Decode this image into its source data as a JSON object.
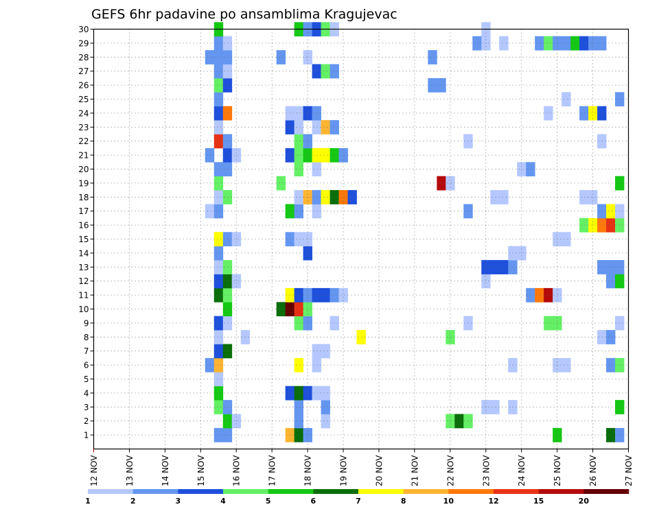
{
  "chart_data": {
    "type": "heatmap",
    "title": "GEFS 6hr padavine po ansamblima Kragujevac",
    "x_tick_labels": [
      "12 NOV",
      "13 NOV",
      "14 NOV",
      "15 NOV",
      "16 NOV",
      "17 NOV",
      "18 NOV",
      "19 NOV",
      "20 NOV",
      "21 NOV",
      "22 NOV",
      "23 NOV",
      "24 NOV",
      "25 NOV",
      "26 NOV",
      "27 NOV"
    ],
    "y_tick_labels": [
      "1",
      "2",
      "3",
      "4",
      "5",
      "6",
      "7",
      "8",
      "9",
      "10",
      "11",
      "12",
      "13",
      "14",
      "15",
      "16",
      "17",
      "18",
      "19",
      "20",
      "21",
      "22",
      "23",
      "24",
      "25",
      "26",
      "27",
      "28",
      "29",
      "30"
    ],
    "xlabel": "",
    "ylabel": "",
    "grid": true,
    "x_range_days": [
      12,
      27
    ],
    "y_range": [
      0,
      30
    ],
    "color_scale": {
      "labels": [
        "1",
        "2",
        "3",
        "4",
        "5",
        "6",
        "7",
        "8",
        "10",
        "12",
        "15",
        "20"
      ],
      "colors": [
        "#b4c8ff",
        "#6496f0",
        "#1e50dc",
        "#64f064",
        "#14c814",
        "#0a6e0a",
        "#ffff00",
        "#ffb432",
        "#ff780a",
        "#e63214",
        "#b40a0a",
        "#640000"
      ]
    },
    "cells": [
      {
        "member": 1,
        "day": 15.5,
        "cls": 2
      },
      {
        "member": 1,
        "day": 15.75,
        "cls": 2
      },
      {
        "member": 1,
        "day": 17.5,
        "cls": 8
      },
      {
        "member": 1,
        "day": 17.75,
        "cls": 6
      },
      {
        "member": 1,
        "day": 18.0,
        "cls": 2
      },
      {
        "member": 1,
        "day": 25.0,
        "cls": 5
      },
      {
        "member": 1,
        "day": 26.5,
        "cls": 6
      },
      {
        "member": 1,
        "day": 26.75,
        "cls": 2
      },
      {
        "member": 2,
        "day": 15.75,
        "cls": 5
      },
      {
        "member": 2,
        "day": 16.0,
        "cls": 1
      },
      {
        "member": 2,
        "day": 17.75,
        "cls": 2
      },
      {
        "member": 2,
        "day": 18.5,
        "cls": 1
      },
      {
        "member": 2,
        "day": 22.0,
        "cls": 4
      },
      {
        "member": 2,
        "day": 22.25,
        "cls": 6
      },
      {
        "member": 2,
        "day": 22.5,
        "cls": 4
      },
      {
        "member": 3,
        "day": 15.5,
        "cls": 4
      },
      {
        "member": 3,
        "day": 15.75,
        "cls": 2
      },
      {
        "member": 3,
        "day": 17.75,
        "cls": 2
      },
      {
        "member": 3,
        "day": 18.5,
        "cls": 2
      },
      {
        "member": 3,
        "day": 23.0,
        "cls": 1
      },
      {
        "member": 3,
        "day": 23.25,
        "cls": 1
      },
      {
        "member": 3,
        "day": 23.75,
        "cls": 1
      },
      {
        "member": 3,
        "day": 26.75,
        "cls": 5
      },
      {
        "member": 4,
        "day": 15.5,
        "cls": 5
      },
      {
        "member": 4,
        "day": 17.5,
        "cls": 3
      },
      {
        "member": 4,
        "day": 17.75,
        "cls": 6
      },
      {
        "member": 4,
        "day": 18.0,
        "cls": 3
      },
      {
        "member": 4,
        "day": 18.25,
        "cls": 1
      },
      {
        "member": 4,
        "day": 18.5,
        "cls": 1
      },
      {
        "member": 5,
        "day": 15.5,
        "cls": 1
      },
      {
        "member": 6,
        "day": 15.25,
        "cls": 2
      },
      {
        "member": 6,
        "day": 15.5,
        "cls": 8
      },
      {
        "member": 6,
        "day": 17.75,
        "cls": 7
      },
      {
        "member": 6,
        "day": 18.25,
        "cls": 1
      },
      {
        "member": 6,
        "day": 23.75,
        "cls": 1
      },
      {
        "member": 6,
        "day": 25.0,
        "cls": 1
      },
      {
        "member": 6,
        "day": 25.25,
        "cls": 1
      },
      {
        "member": 6,
        "day": 26.5,
        "cls": 2
      },
      {
        "member": 6,
        "day": 26.75,
        "cls": 4
      },
      {
        "member": 7,
        "day": 15.5,
        "cls": 3
      },
      {
        "member": 7,
        "day": 15.75,
        "cls": 6
      },
      {
        "member": 7,
        "day": 18.25,
        "cls": 1
      },
      {
        "member": 7,
        "day": 18.5,
        "cls": 1
      },
      {
        "member": 8,
        "day": 15.5,
        "cls": 1
      },
      {
        "member": 8,
        "day": 16.25,
        "cls": 1
      },
      {
        "member": 8,
        "day": 19.5,
        "cls": 7
      },
      {
        "member": 8,
        "day": 22.0,
        "cls": 4
      },
      {
        "member": 8,
        "day": 26.25,
        "cls": 1
      },
      {
        "member": 8,
        "day": 26.5,
        "cls": 2
      },
      {
        "member": 9,
        "day": 15.5,
        "cls": 3
      },
      {
        "member": 9,
        "day": 15.75,
        "cls": 1
      },
      {
        "member": 9,
        "day": 17.75,
        "cls": 4
      },
      {
        "member": 9,
        "day": 18.0,
        "cls": 2
      },
      {
        "member": 9,
        "day": 18.75,
        "cls": 1
      },
      {
        "member": 9,
        "day": 22.5,
        "cls": 1
      },
      {
        "member": 9,
        "day": 24.75,
        "cls": 4
      },
      {
        "member": 9,
        "day": 25.0,
        "cls": 4
      },
      {
        "member": 9,
        "day": 26.75,
        "cls": 1
      },
      {
        "member": 10,
        "day": 15.75,
        "cls": 5
      },
      {
        "member": 10,
        "day": 17.25,
        "cls": 6
      },
      {
        "member": 10,
        "day": 17.5,
        "cls": 12
      },
      {
        "member": 10,
        "day": 17.75,
        "cls": 10
      },
      {
        "member": 10,
        "day": 18.0,
        "cls": 4
      },
      {
        "member": 11,
        "day": 15.5,
        "cls": 6
      },
      {
        "member": 11,
        "day": 15.75,
        "cls": 4
      },
      {
        "member": 11,
        "day": 17.5,
        "cls": 7
      },
      {
        "member": 11,
        "day": 17.75,
        "cls": 3
      },
      {
        "member": 11,
        "day": 18.0,
        "cls": 2
      },
      {
        "member": 11,
        "day": 18.25,
        "cls": 3
      },
      {
        "member": 11,
        "day": 18.5,
        "cls": 3
      },
      {
        "member": 11,
        "day": 18.75,
        "cls": 2
      },
      {
        "member": 11,
        "day": 19.0,
        "cls": 1
      },
      {
        "member": 11,
        "day": 24.25,
        "cls": 2
      },
      {
        "member": 11,
        "day": 24.5,
        "cls": 9
      },
      {
        "member": 11,
        "day": 24.75,
        "cls": 11
      },
      {
        "member": 11,
        "day": 25.0,
        "cls": 1
      },
      {
        "member": 12,
        "day": 15.5,
        "cls": 3
      },
      {
        "member": 12,
        "day": 15.75,
        "cls": 6
      },
      {
        "member": 12,
        "day": 16.0,
        "cls": 1
      },
      {
        "member": 12,
        "day": 23.0,
        "cls": 1
      },
      {
        "member": 12,
        "day": 26.5,
        "cls": 2
      },
      {
        "member": 12,
        "day": 26.75,
        "cls": 5
      },
      {
        "member": 13,
        "day": 15.5,
        "cls": 1
      },
      {
        "member": 13,
        "day": 15.75,
        "cls": 4
      },
      {
        "member": 13,
        "day": 23.0,
        "cls": 3
      },
      {
        "member": 13,
        "day": 23.25,
        "cls": 3
      },
      {
        "member": 13,
        "day": 23.5,
        "cls": 3
      },
      {
        "member": 13,
        "day": 23.75,
        "cls": 2
      },
      {
        "member": 13,
        "day": 26.25,
        "cls": 2
      },
      {
        "member": 13,
        "day": 26.5,
        "cls": 2
      },
      {
        "member": 13,
        "day": 26.75,
        "cls": 2
      },
      {
        "member": 14,
        "day": 15.5,
        "cls": 2
      },
      {
        "member": 14,
        "day": 18.0,
        "cls": 3
      },
      {
        "member": 14,
        "day": 23.75,
        "cls": 1
      },
      {
        "member": 14,
        "day": 24.0,
        "cls": 1
      },
      {
        "member": 15,
        "day": 15.5,
        "cls": 7
      },
      {
        "member": 15,
        "day": 15.75,
        "cls": 2
      },
      {
        "member": 15,
        "day": 16.0,
        "cls": 1
      },
      {
        "member": 15,
        "day": 17.5,
        "cls": 2
      },
      {
        "member": 15,
        "day": 17.75,
        "cls": 1
      },
      {
        "member": 15,
        "day": 18.0,
        "cls": 1
      },
      {
        "member": 15,
        "day": 25.0,
        "cls": 1
      },
      {
        "member": 15,
        "day": 25.25,
        "cls": 1
      },
      {
        "member": 16,
        "day": 25.75,
        "cls": 4
      },
      {
        "member": 16,
        "day": 26.0,
        "cls": 7
      },
      {
        "member": 16,
        "day": 26.25,
        "cls": 9
      },
      {
        "member": 16,
        "day": 26.5,
        "cls": 10
      },
      {
        "member": 16,
        "day": 26.75,
        "cls": 4
      },
      {
        "member": 17,
        "day": 15.25,
        "cls": 1
      },
      {
        "member": 17,
        "day": 15.5,
        "cls": 2
      },
      {
        "member": 17,
        "day": 17.5,
        "cls": 5
      },
      {
        "member": 17,
        "day": 17.75,
        "cls": 2
      },
      {
        "member": 17,
        "day": 18.25,
        "cls": 1
      },
      {
        "member": 17,
        "day": 22.5,
        "cls": 2
      },
      {
        "member": 17,
        "day": 26.25,
        "cls": 2
      },
      {
        "member": 17,
        "day": 26.5,
        "cls": 7
      },
      {
        "member": 17,
        "day": 26.75,
        "cls": 1
      },
      {
        "member": 18,
        "day": 15.5,
        "cls": 1
      },
      {
        "member": 18,
        "day": 15.75,
        "cls": 4
      },
      {
        "member": 18,
        "day": 17.75,
        "cls": 1
      },
      {
        "member": 18,
        "day": 18.0,
        "cls": 8
      },
      {
        "member": 18,
        "day": 18.25,
        "cls": 2
      },
      {
        "member": 18,
        "day": 18.5,
        "cls": 7
      },
      {
        "member": 18,
        "day": 18.75,
        "cls": 6
      },
      {
        "member": 18,
        "day": 19.0,
        "cls": 9
      },
      {
        "member": 18,
        "day": 19.25,
        "cls": 3
      },
      {
        "member": 18,
        "day": 23.25,
        "cls": 1
      },
      {
        "member": 18,
        "day": 23.5,
        "cls": 1
      },
      {
        "member": 18,
        "day": 25.75,
        "cls": 1
      },
      {
        "member": 18,
        "day": 26.0,
        "cls": 1
      },
      {
        "member": 19,
        "day": 15.5,
        "cls": 4
      },
      {
        "member": 19,
        "day": 17.25,
        "cls": 4
      },
      {
        "member": 19,
        "day": 21.75,
        "cls": 11
      },
      {
        "member": 19,
        "day": 22.0,
        "cls": 1
      },
      {
        "member": 19,
        "day": 26.75,
        "cls": 5
      },
      {
        "member": 20,
        "day": 15.5,
        "cls": 2
      },
      {
        "member": 20,
        "day": 15.75,
        "cls": 2
      },
      {
        "member": 20,
        "day": 17.75,
        "cls": 4
      },
      {
        "member": 20,
        "day": 18.25,
        "cls": 1
      },
      {
        "member": 20,
        "day": 24.0,
        "cls": 1
      },
      {
        "member": 20,
        "day": 24.25,
        "cls": 2
      },
      {
        "member": 21,
        "day": 15.25,
        "cls": 2
      },
      {
        "member": 21,
        "day": 15.75,
        "cls": 3
      },
      {
        "member": 21,
        "day": 16.0,
        "cls": 1
      },
      {
        "member": 21,
        "day": 17.5,
        "cls": 3
      },
      {
        "member": 21,
        "day": 17.75,
        "cls": 4
      },
      {
        "member": 21,
        "day": 18.0,
        "cls": 5
      },
      {
        "member": 21,
        "day": 18.25,
        "cls": 7
      },
      {
        "member": 21,
        "day": 18.5,
        "cls": 7
      },
      {
        "member": 21,
        "day": 18.75,
        "cls": 5
      },
      {
        "member": 21,
        "day": 19.0,
        "cls": 2
      },
      {
        "member": 22,
        "day": 15.5,
        "cls": 10
      },
      {
        "member": 22,
        "day": 15.75,
        "cls": 2
      },
      {
        "member": 22,
        "day": 17.75,
        "cls": 4
      },
      {
        "member": 22,
        "day": 18.0,
        "cls": 2
      },
      {
        "member": 22,
        "day": 22.5,
        "cls": 1
      },
      {
        "member": 22,
        "day": 26.25,
        "cls": 1
      },
      {
        "member": 23,
        "day": 15.5,
        "cls": 1
      },
      {
        "member": 23,
        "day": 17.5,
        "cls": 3
      },
      {
        "member": 23,
        "day": 17.75,
        "cls": 1
      },
      {
        "member": 23,
        "day": 18.25,
        "cls": 1
      },
      {
        "member": 23,
        "day": 18.5,
        "cls": 8
      },
      {
        "member": 23,
        "day": 18.75,
        "cls": 2
      },
      {
        "member": 24,
        "day": 15.5,
        "cls": 3
      },
      {
        "member": 24,
        "day": 15.75,
        "cls": 9
      },
      {
        "member": 24,
        "day": 17.5,
        "cls": 1
      },
      {
        "member": 24,
        "day": 17.75,
        "cls": 1
      },
      {
        "member": 24,
        "day": 18.0,
        "cls": 3
      },
      {
        "member": 24,
        "day": 18.25,
        "cls": 2
      },
      {
        "member": 24,
        "day": 24.75,
        "cls": 1
      },
      {
        "member": 24,
        "day": 25.75,
        "cls": 2
      },
      {
        "member": 24,
        "day": 26.0,
        "cls": 7
      },
      {
        "member": 24,
        "day": 26.25,
        "cls": 3
      },
      {
        "member": 25,
        "day": 15.5,
        "cls": 2
      },
      {
        "member": 25,
        "day": 25.25,
        "cls": 1
      },
      {
        "member": 25,
        "day": 26.75,
        "cls": 2
      },
      {
        "member": 26,
        "day": 15.5,
        "cls": 4
      },
      {
        "member": 26,
        "day": 15.75,
        "cls": 3
      },
      {
        "member": 26,
        "day": 21.5,
        "cls": 2
      },
      {
        "member": 26,
        "day": 21.75,
        "cls": 2
      },
      {
        "member": 27,
        "day": 15.5,
        "cls": 2
      },
      {
        "member": 27,
        "day": 15.75,
        "cls": 1
      },
      {
        "member": 27,
        "day": 18.25,
        "cls": 3
      },
      {
        "member": 27,
        "day": 18.5,
        "cls": 4
      },
      {
        "member": 27,
        "day": 18.75,
        "cls": 2
      },
      {
        "member": 28,
        "day": 15.25,
        "cls": 2
      },
      {
        "member": 28,
        "day": 15.5,
        "cls": 2
      },
      {
        "member": 28,
        "day": 15.75,
        "cls": 2
      },
      {
        "member": 28,
        "day": 17.25,
        "cls": 2
      },
      {
        "member": 28,
        "day": 18.0,
        "cls": 1
      },
      {
        "member": 28,
        "day": 21.5,
        "cls": 2
      },
      {
        "member": 29,
        "day": 15.5,
        "cls": 2
      },
      {
        "member": 29,
        "day": 15.75,
        "cls": 1
      },
      {
        "member": 29,
        "day": 22.75,
        "cls": 2
      },
      {
        "member": 29,
        "day": 23.0,
        "cls": 1
      },
      {
        "member": 29,
        "day": 23.5,
        "cls": 1
      },
      {
        "member": 29,
        "day": 24.5,
        "cls": 2
      },
      {
        "member": 29,
        "day": 24.75,
        "cls": 4
      },
      {
        "member": 29,
        "day": 25.0,
        "cls": 2
      },
      {
        "member": 29,
        "day": 25.25,
        "cls": 2
      },
      {
        "member": 29,
        "day": 25.5,
        "cls": 5
      },
      {
        "member": 29,
        "day": 25.75,
        "cls": 3
      },
      {
        "member": 29,
        "day": 26.0,
        "cls": 2
      },
      {
        "member": 29,
        "day": 26.25,
        "cls": 2
      },
      {
        "member": 30,
        "day": 15.5,
        "cls": 5
      },
      {
        "member": 30,
        "day": 17.75,
        "cls": 5
      },
      {
        "member": 30,
        "day": 18.0,
        "cls": 2
      },
      {
        "member": 30,
        "day": 18.25,
        "cls": 3
      },
      {
        "member": 30,
        "day": 18.5,
        "cls": 4
      },
      {
        "member": 30,
        "day": 18.75,
        "cls": 1
      },
      {
        "member": 30,
        "day": 23.0,
        "cls": 1
      }
    ]
  }
}
